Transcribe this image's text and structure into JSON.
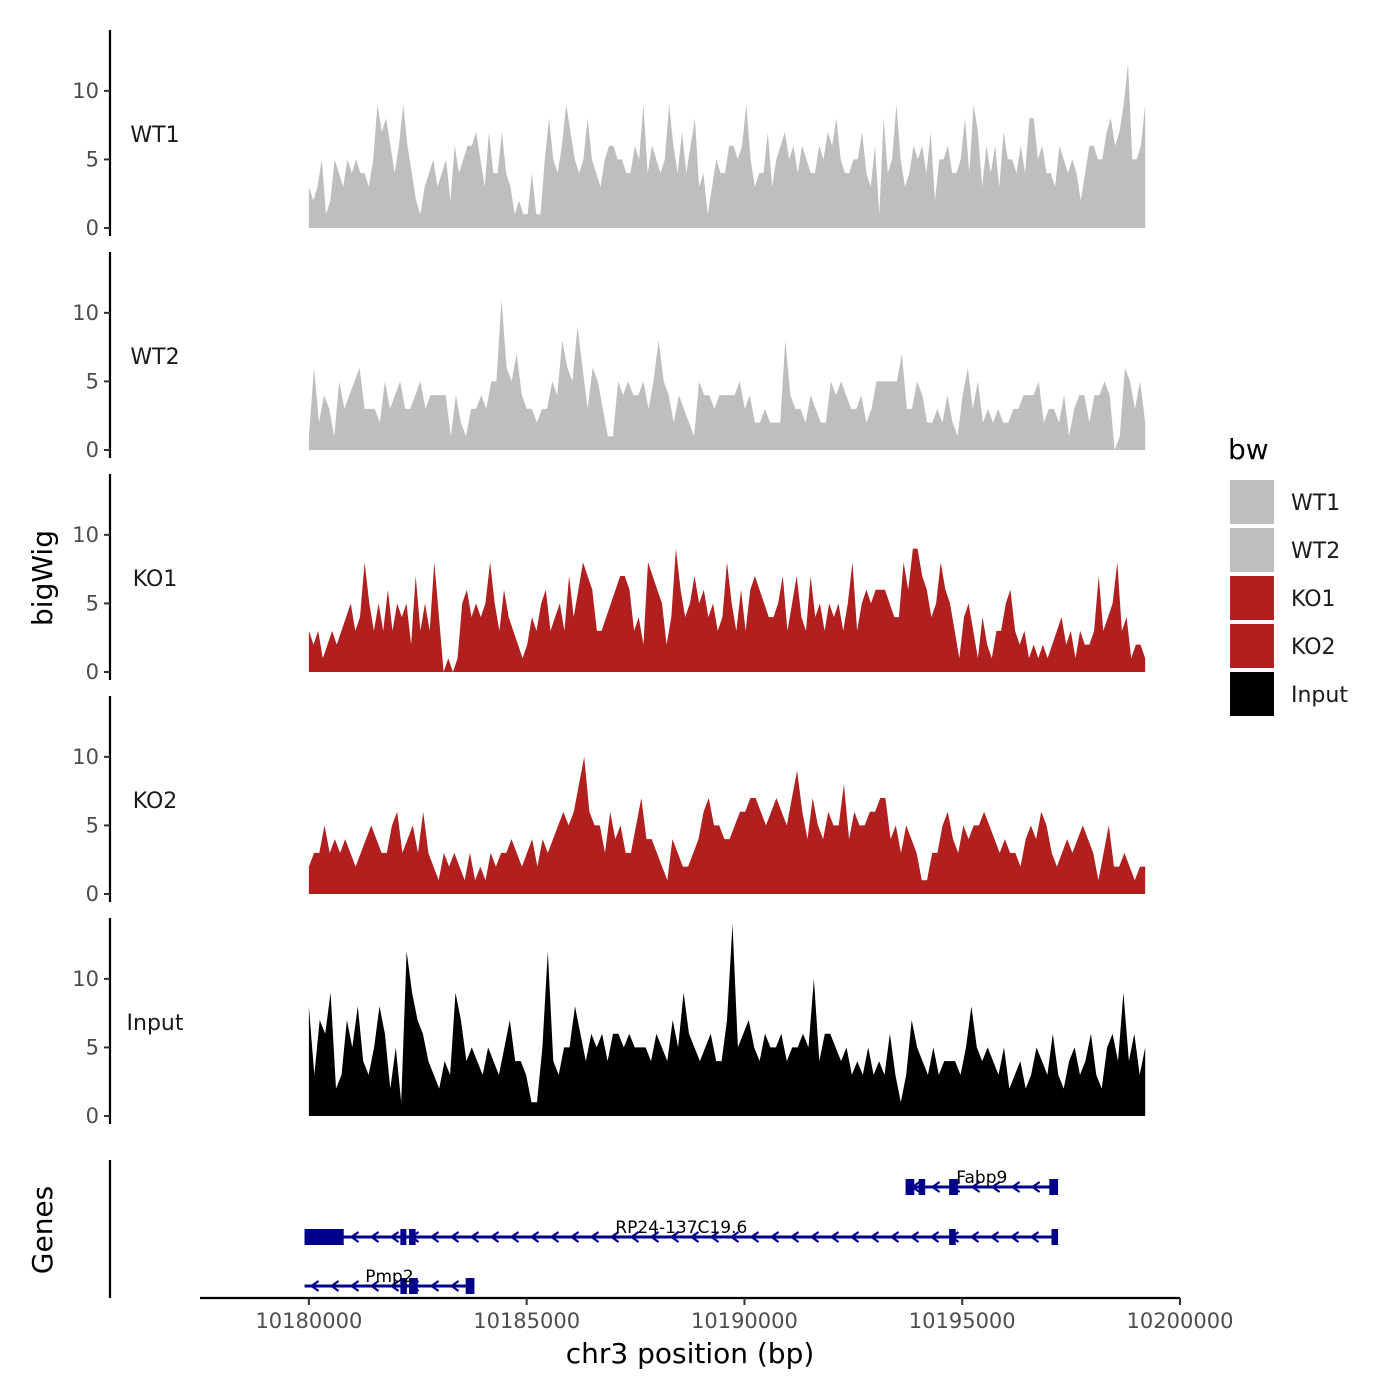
{
  "chart_data": {
    "type": "area",
    "xlabel": "chr3 position (bp)",
    "ylabel": "bigWig",
    "genes_label": "Genes",
    "xlim": [
      10177500,
      10200000
    ],
    "data_xrange": [
      10180000,
      10199200
    ],
    "x_ticks": [
      10180000,
      10185000,
      10190000,
      10195000,
      10200000
    ],
    "x_tick_labels": [
      "10180000",
      "10185000",
      "10190000",
      "10195000",
      "10200000"
    ],
    "ylim": [
      0,
      14
    ],
    "y_ticks": [
      0,
      5,
      10
    ],
    "y_tick_labels": [
      "0",
      "5",
      "10"
    ],
    "legend": {
      "title": "bw",
      "entries": [
        {
          "label": "WT1",
          "color": "#bebebe"
        },
        {
          "label": "WT2",
          "color": "#bebebe"
        },
        {
          "label": "KO1",
          "color": "#b21f1f"
        },
        {
          "label": "KO2",
          "color": "#b21f1f"
        },
        {
          "label": "Input",
          "color": "#000000"
        }
      ]
    },
    "series": [
      {
        "name": "WT1",
        "color": "#bebebe",
        "values": [
          3,
          2,
          3,
          5,
          1,
          2,
          5,
          4,
          3,
          5,
          4,
          5,
          4,
          4,
          3,
          5,
          9,
          7,
          8,
          6,
          4,
          6,
          9,
          6,
          4,
          2,
          1,
          3,
          4,
          5,
          3,
          4,
          5,
          2,
          6,
          4,
          5,
          6,
          6,
          7,
          5,
          3,
          7,
          4,
          4,
          7,
          4,
          3,
          1,
          2,
          1,
          1,
          4,
          1,
          1,
          5,
          8,
          5,
          4,
          6,
          9,
          7,
          5,
          4,
          5,
          8,
          5,
          4,
          3,
          5,
          6,
          6,
          5,
          5,
          4,
          4,
          6,
          5,
          9,
          4,
          6,
          5,
          4,
          5,
          9,
          6,
          4,
          7,
          4,
          6,
          8,
          3,
          4,
          1,
          3,
          5,
          4,
          4,
          6,
          6,
          5,
          6,
          9,
          5,
          3,
          4,
          4,
          7,
          3,
          5,
          6,
          7,
          5,
          6,
          4,
          6,
          5,
          4,
          4,
          6,
          5,
          7,
          6,
          8,
          5,
          4,
          4,
          5,
          5,
          7,
          4,
          3,
          6,
          1,
          8,
          4,
          5,
          9,
          5,
          3,
          4,
          6,
          5,
          6,
          4,
          7,
          2,
          5,
          5,
          6,
          4,
          4,
          5,
          8,
          4,
          9,
          7,
          3,
          6,
          4,
          6,
          3,
          7,
          5,
          5,
          4,
          6,
          4,
          8,
          8,
          5,
          6,
          4,
          4,
          3,
          6,
          5,
          4,
          5,
          4,
          2,
          4,
          6,
          6,
          5,
          5,
          7,
          8,
          6,
          7,
          9,
          12,
          5,
          5,
          6,
          9
        ]
      },
      {
        "name": "WT2",
        "color": "#bebebe",
        "values": [
          1,
          6,
          2,
          4,
          3,
          1,
          5,
          3,
          4,
          5,
          6,
          3,
          3,
          3,
          2,
          5,
          3,
          4,
          5,
          3,
          3,
          4,
          5,
          3,
          4,
          4,
          4,
          4,
          1,
          4,
          2,
          1,
          3,
          3,
          4,
          3,
          5,
          5,
          11,
          6,
          5,
          7,
          4,
          3,
          3,
          2,
          3,
          3,
          5,
          4,
          8,
          6,
          5,
          9,
          6,
          3,
          6,
          5,
          3,
          1,
          1,
          5,
          4,
          5,
          4,
          4,
          5,
          3,
          5,
          8,
          5,
          4,
          2,
          4,
          3,
          2,
          1,
          5,
          4,
          4,
          3,
          4,
          4,
          4,
          4,
          5,
          3,
          4,
          2,
          2,
          3,
          2,
          2,
          2,
          8,
          4,
          3,
          3,
          2,
          4,
          3,
          2,
          2,
          5,
          4,
          5,
          4,
          3,
          3,
          4,
          2,
          3,
          5,
          5,
          5,
          5,
          5,
          7,
          3,
          3,
          5,
          4,
          2,
          2,
          3,
          2,
          4,
          2,
          1,
          4,
          6,
          3,
          5,
          2,
          3,
          2,
          3,
          2,
          2,
          3,
          3,
          4,
          4,
          4,
          5,
          2,
          3,
          3,
          2,
          4,
          1,
          3,
          4,
          4,
          2,
          4,
          4,
          5,
          4,
          0,
          1,
          6,
          5,
          3,
          5,
          2
        ]
      },
      {
        "name": "KO1",
        "color": "#b21f1f",
        "values": [
          3,
          2,
          3,
          1,
          2,
          3,
          2,
          3,
          4,
          5,
          3,
          4,
          8,
          5,
          3,
          5,
          3,
          6,
          3,
          5,
          4,
          5,
          2,
          7,
          3,
          5,
          3,
          8,
          4,
          0,
          1,
          0,
          1,
          5,
          6,
          4,
          5,
          4,
          5,
          8,
          5,
          3,
          6,
          4,
          3,
          2,
          1,
          2,
          4,
          3,
          5,
          6,
          3,
          4,
          5,
          3,
          7,
          4,
          6,
          8,
          7,
          6,
          3,
          3,
          4,
          5,
          6,
          7,
          7,
          6,
          3,
          4,
          2,
          8,
          7,
          6,
          5,
          2,
          4,
          9,
          6,
          4,
          5,
          7,
          5,
          6,
          4,
          5,
          3,
          4,
          8,
          5,
          3,
          6,
          3,
          6,
          7,
          6,
          5,
          4,
          4,
          5,
          7,
          3,
          5,
          7,
          4,
          3,
          7,
          4,
          5,
          3,
          5,
          4,
          5,
          3,
          5,
          8,
          3,
          5,
          6,
          5,
          6,
          6,
          6,
          5,
          4,
          4,
          8,
          6,
          9,
          9,
          7,
          6,
          4,
          5,
          8,
          6,
          5,
          3,
          1,
          4,
          5,
          3,
          1,
          4,
          2,
          1,
          3,
          3,
          5,
          6,
          3,
          2,
          3,
          1,
          2,
          1,
          2,
          1,
          2,
          3,
          4,
          2,
          3,
          1,
          3,
          2,
          2,
          3,
          7,
          3,
          4,
          5,
          8,
          3,
          4,
          1,
          2,
          2,
          1
        ]
      },
      {
        "name": "KO2",
        "color": "#b21f1f",
        "values": [
          2,
          3,
          3,
          5,
          3,
          4,
          3,
          4,
          3,
          2,
          3,
          4,
          5,
          4,
          3,
          3,
          5,
          6,
          3,
          4,
          5,
          3,
          6,
          3,
          2,
          1,
          3,
          2,
          3,
          2,
          1,
          3,
          1,
          2,
          1,
          3,
          2,
          3,
          3,
          4,
          3,
          2,
          3,
          4,
          2,
          4,
          3,
          4,
          5,
          6,
          5,
          6,
          8,
          10,
          6,
          5,
          5,
          3,
          6,
          4,
          5,
          3,
          3,
          5,
          7,
          4,
          4,
          3,
          2,
          1,
          4,
          3,
          2,
          2,
          3,
          4,
          6,
          7,
          5,
          5,
          4,
          4,
          5,
          6,
          6,
          7,
          7,
          6,
          5,
          6,
          7,
          6,
          5,
          7,
          9,
          6,
          4,
          7,
          5,
          4,
          6,
          5,
          5,
          8,
          4,
          6,
          5,
          5,
          6,
          6,
          7,
          7,
          4,
          5,
          3,
          5,
          4,
          3,
          1,
          1,
          3,
          3,
          5,
          6,
          4,
          3,
          5,
          4,
          5,
          5,
          6,
          5,
          4,
          3,
          4,
          3,
          3,
          2,
          4,
          5,
          4,
          6,
          5,
          3,
          2,
          3,
          4,
          3,
          4,
          5,
          4,
          3,
          1,
          3,
          5,
          2,
          2,
          3,
          2,
          1,
          2,
          2
        ]
      },
      {
        "name": "Input",
        "color": "#000000",
        "values": [
          8,
          3,
          7,
          6,
          9,
          2,
          3,
          7,
          5,
          8,
          4,
          3,
          5,
          8,
          6,
          2,
          5,
          1,
          12,
          9,
          7,
          6,
          4,
          3,
          2,
          4,
          3,
          9,
          7,
          4,
          5,
          4,
          3,
          5,
          4,
          3,
          5,
          7,
          4,
          4,
          3,
          1,
          1,
          5,
          12,
          4,
          3,
          5,
          5,
          8,
          6,
          4,
          6,
          5,
          6,
          4,
          6,
          6,
          5,
          6,
          5,
          5,
          5,
          4,
          6,
          5,
          4,
          7,
          5,
          9,
          6,
          5,
          4,
          5,
          6,
          4,
          4,
          7,
          14,
          5,
          6,
          7,
          5,
          4,
          6,
          5,
          5,
          6,
          4,
          5,
          5,
          6,
          5,
          10,
          4,
          6,
          6,
          5,
          4,
          5,
          3,
          4,
          3,
          5,
          3,
          4,
          3,
          6,
          3,
          1,
          3,
          7,
          5,
          4,
          3,
          5,
          3,
          4,
          4,
          4,
          3,
          5,
          8,
          5,
          4,
          5,
          4,
          3,
          5,
          2,
          3,
          4,
          2,
          3,
          5,
          4,
          3,
          6,
          3,
          2,
          4,
          5,
          3,
          4,
          6,
          3,
          2,
          5,
          6,
          4,
          9,
          4,
          6,
          3,
          5
        ]
      }
    ],
    "genes": [
      {
        "name": "Fabp9",
        "start": 10193700,
        "end": 10197200,
        "strand": "-",
        "row": 1,
        "exons": [
          [
            10193700,
            10193900
          ],
          [
            10194000,
            10194150
          ],
          [
            10194700,
            10194900
          ],
          [
            10197000,
            10197200
          ]
        ]
      },
      {
        "name": "RP24-137C19.6",
        "start": 10179900,
        "end": 10197200,
        "strand": "-",
        "row": 2,
        "exons": [
          [
            10179900,
            10180800
          ],
          [
            10182100,
            10182200
          ],
          [
            10182300,
            10182450
          ],
          [
            10194700,
            10194850
          ],
          [
            10197050,
            10197200
          ]
        ]
      },
      {
        "name": "Pmp2",
        "start": 10179900,
        "end": 10183800,
        "strand": "-",
        "row": 3,
        "exons": [
          [
            10182100,
            10182250
          ],
          [
            10182300,
            10182500
          ],
          [
            10183600,
            10183800
          ]
        ]
      }
    ]
  }
}
